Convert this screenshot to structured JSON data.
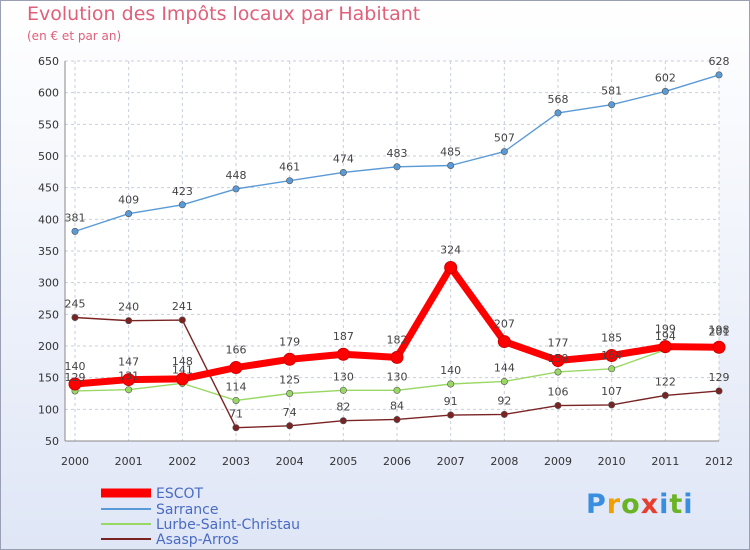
{
  "title": "Evolution des Impôts locaux par Habitant",
  "subtitle": "(en € et par an)",
  "logo": {
    "brand": "Proxiti",
    "letters": [
      "P",
      "r",
      "o",
      "x",
      "i",
      "t",
      "i"
    ]
  },
  "chart_data": {
    "type": "line",
    "x": [
      "2000",
      "2001",
      "2002",
      "2003",
      "2004",
      "2005",
      "2006",
      "2007",
      "2008",
      "2009",
      "2010",
      "2011",
      "2012"
    ],
    "yticks": [
      "50",
      "100",
      "150",
      "200",
      "250",
      "300",
      "350",
      "400",
      "450",
      "500",
      "550",
      "600",
      "650"
    ],
    "ylim": [
      50,
      650
    ],
    "grid": true,
    "legend_position": "bottom-left",
    "series": [
      {
        "name": "ESCOT",
        "color": "#ff0000",
        "values": [
          140,
          147,
          148,
          166,
          179,
          187,
          182,
          324,
          207,
          177,
          185,
          199,
          198
        ],
        "labels": [
          "140",
          "147",
          "148",
          "166",
          "179",
          "187",
          "182",
          "324",
          "207",
          "177",
          "185",
          "199",
          "198"
        ]
      },
      {
        "name": "Sarrance",
        "color": "#5a9ad6",
        "values": [
          381,
          409,
          423,
          448,
          461,
          474,
          483,
          485,
          507,
          568,
          581,
          602,
          628
        ],
        "labels": [
          "381",
          "409",
          "423",
          "448",
          "461",
          "474",
          "483",
          "485",
          "507",
          "568",
          "581",
          "602",
          "628"
        ]
      },
      {
        "name": "Lurbe-Saint-Christau",
        "color": "#9ad865",
        "values": [
          129,
          131,
          141,
          114,
          125,
          130,
          130,
          140,
          144,
          159,
          164,
          194,
          201
        ],
        "labels": [
          "129",
          "131",
          "141",
          "114",
          "125",
          "130",
          "130",
          "140",
          "144",
          "159",
          "164",
          "194",
          "201"
        ]
      },
      {
        "name": "Asasp-Arros",
        "color": "#7a2323",
        "values": [
          245,
          240,
          241,
          71,
          74,
          82,
          84,
          91,
          92,
          106,
          107,
          122,
          129
        ],
        "labels": [
          "245",
          "240",
          "241",
          "71",
          "74",
          "82",
          "84",
          "91",
          "92",
          "106",
          "107",
          "122",
          "129"
        ]
      }
    ]
  }
}
